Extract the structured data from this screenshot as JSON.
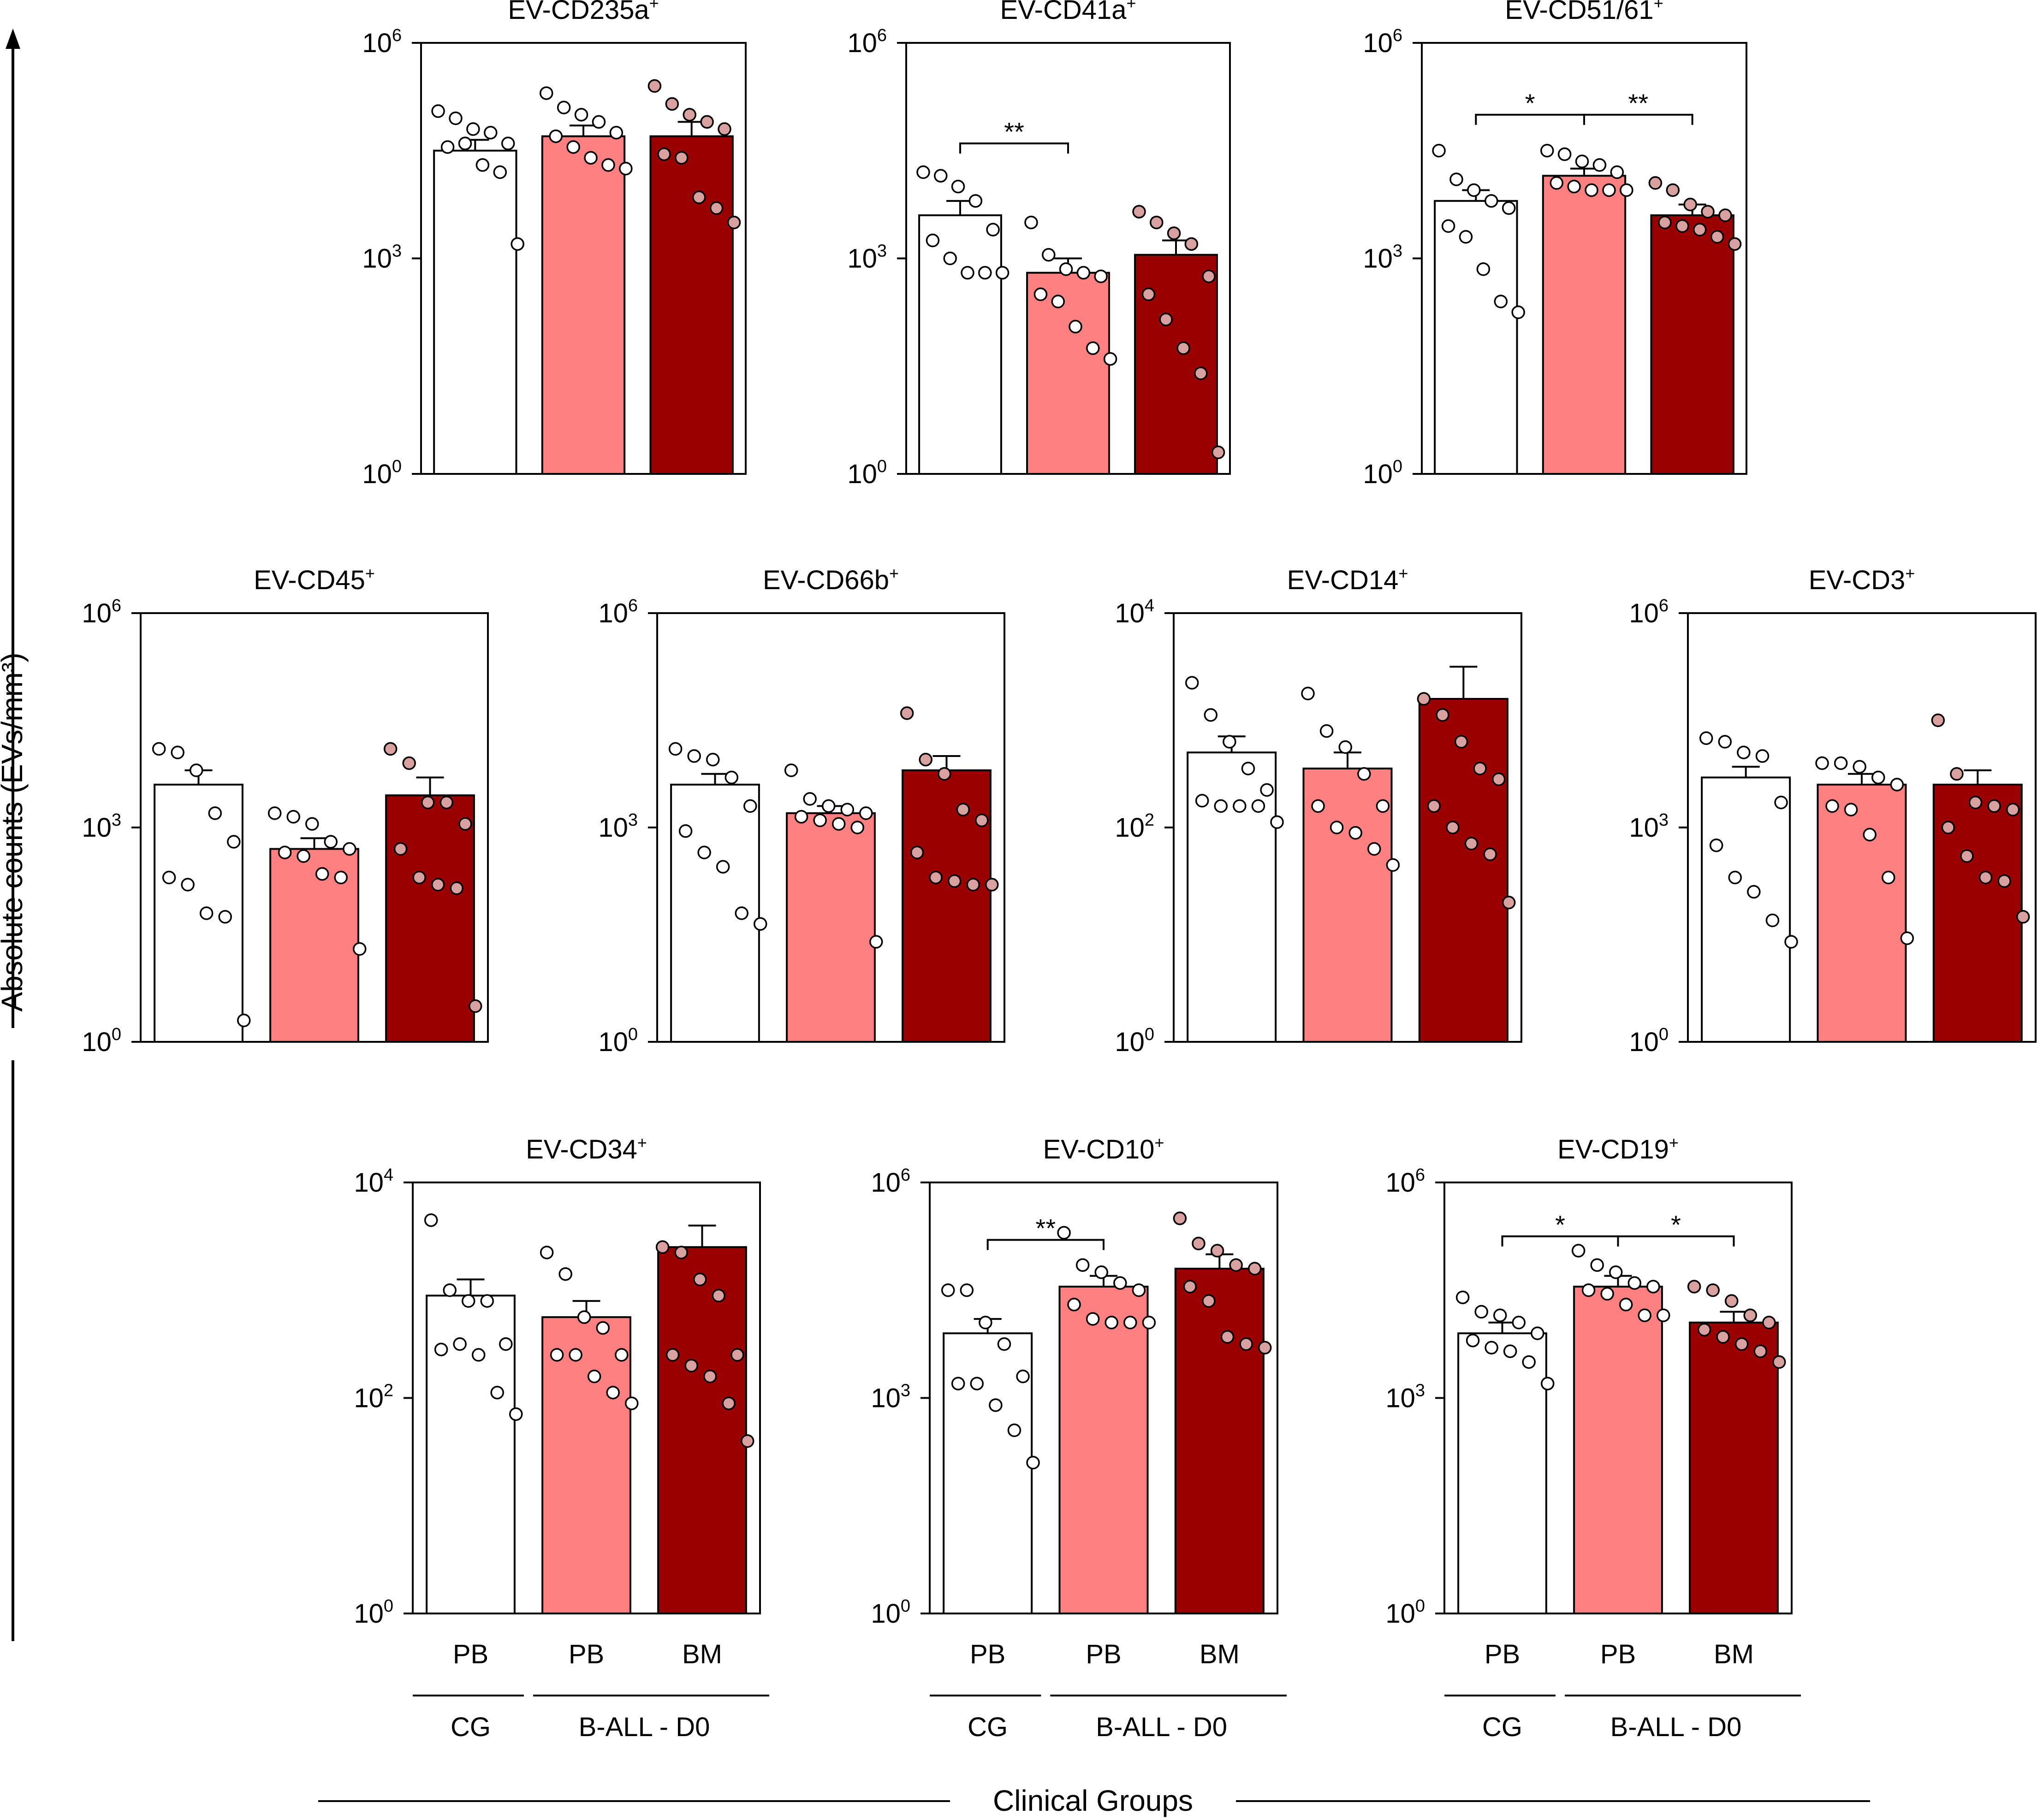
{
  "figure": {
    "y_axis_label": "Absolute counts (EVs/mm³)",
    "x_axis_label": "Clinical Groups",
    "group_labels": [
      "PB",
      "PB",
      "BM"
    ],
    "bracket_labels": [
      "CG",
      "B-ALL - D0"
    ]
  },
  "colors": {
    "cg_pb": "#ffffff",
    "ball_pb": "#ff8080",
    "ball_bm": "#9b0000",
    "dot_light": "#ffffff",
    "dot_pink": "#d9a0a0",
    "axis": "#000000"
  },
  "chart_data": [
    {
      "type": "bar",
      "title_main": "EV-CD235a",
      "title_sup": "+",
      "yscale": "log",
      "ylim_exp": [
        0,
        6
      ],
      "ytick_labels": [
        {
          "exp": 0,
          "base": "10",
          "sup": "0"
        },
        {
          "exp": 3,
          "base": "10",
          "sup": "3"
        },
        {
          "exp": 6,
          "base": "10",
          "sup": "6"
        }
      ],
      "categories": [
        "PB",
        "PB",
        "BM"
      ],
      "series": [
        {
          "name": "CG PB",
          "mean_exp": 4.5,
          "sem_exp": 4.65,
          "points_exp": [
            5.05,
            4.95,
            4.8,
            4.75,
            4.6,
            4.55,
            4.6,
            4.3,
            4.2,
            3.2
          ]
        },
        {
          "name": "B-ALL PB",
          "mean_exp": 4.7,
          "sem_exp": 4.85,
          "points_exp": [
            5.3,
            5.1,
            5.0,
            4.9,
            4.75,
            4.7,
            4.55,
            4.4,
            4.3,
            4.25
          ]
        },
        {
          "name": "B-ALL BM",
          "mean_exp": 4.7,
          "sem_exp": 4.9,
          "points_exp": [
            5.4,
            5.15,
            5.0,
            4.9,
            4.8,
            4.45,
            4.4,
            3.85,
            3.7,
            3.5
          ]
        }
      ],
      "significance": [],
      "show_x_labels": false
    },
    {
      "type": "bar",
      "title_main": "EV-CD41a",
      "title_sup": "+",
      "yscale": "log",
      "ylim_exp": [
        0,
        6
      ],
      "ytick_labels": [
        {
          "exp": 0,
          "base": "10",
          "sup": "0"
        },
        {
          "exp": 3,
          "base": "10",
          "sup": "3"
        },
        {
          "exp": 6,
          "base": "10",
          "sup": "6"
        }
      ],
      "categories": [
        "PB",
        "PB",
        "BM"
      ],
      "series": [
        {
          "name": "CG PB",
          "mean_exp": 3.6,
          "sem_exp": 3.8,
          "points_exp": [
            4.2,
            4.15,
            4.0,
            3.8,
            3.4,
            3.25,
            3.0,
            2.8,
            2.8,
            2.8
          ]
        },
        {
          "name": "B-ALL PB",
          "mean_exp": 2.8,
          "sem_exp": 3.0,
          "points_exp": [
            3.5,
            3.05,
            2.85,
            2.8,
            2.75,
            2.5,
            2.4,
            2.05,
            1.75,
            1.6
          ]
        },
        {
          "name": "B-ALL BM",
          "mean_exp": 3.05,
          "sem_exp": 3.25,
          "points_exp": [
            3.65,
            3.5,
            3.35,
            3.2,
            2.75,
            2.5,
            2.15,
            1.75,
            1.4,
            0.3
          ]
        }
      ],
      "significance": [
        {
          "from": 0,
          "to": 1,
          "label": "**",
          "level_exp": 4.6
        }
      ],
      "show_x_labels": false
    },
    {
      "type": "bar",
      "title_main": "EV-CD51/61",
      "title_sup": "+",
      "yscale": "log",
      "ylim_exp": [
        0,
        6
      ],
      "ytick_labels": [
        {
          "exp": 0,
          "base": "10",
          "sup": "0"
        },
        {
          "exp": 3,
          "base": "10",
          "sup": "3"
        },
        {
          "exp": 6,
          "base": "10",
          "sup": "6"
        }
      ],
      "categories": [
        "PB",
        "PB",
        "BM"
      ],
      "series": [
        {
          "name": "CG PB",
          "mean_exp": 3.8,
          "sem_exp": 3.95,
          "points_exp": [
            4.5,
            4.1,
            3.95,
            3.8,
            3.7,
            3.45,
            3.3,
            2.85,
            2.4,
            2.25
          ]
        },
        {
          "name": "B-ALL PB",
          "mean_exp": 4.15,
          "sem_exp": 4.25,
          "points_exp": [
            4.5,
            4.45,
            4.35,
            4.3,
            4.2,
            4.05,
            4.0,
            3.95,
            3.95,
            3.95
          ]
        },
        {
          "name": "B-ALL BM",
          "mean_exp": 3.6,
          "sem_exp": 3.75,
          "points_exp": [
            4.05,
            3.95,
            3.75,
            3.65,
            3.6,
            3.5,
            3.45,
            3.4,
            3.3,
            3.2
          ]
        }
      ],
      "significance": [
        {
          "from": 0,
          "to": 1,
          "label": "*",
          "level_exp": 5.0
        },
        {
          "from": 1,
          "to": 2,
          "label": "**",
          "level_exp": 5.0
        }
      ],
      "show_x_labels": false
    },
    {
      "type": "bar",
      "title_main": "EV-CD45",
      "title_sup": "+",
      "yscale": "log",
      "ylim_exp": [
        0,
        6
      ],
      "ytick_labels": [
        {
          "exp": 0,
          "base": "10",
          "sup": "0"
        },
        {
          "exp": 3,
          "base": "10",
          "sup": "3"
        },
        {
          "exp": 6,
          "base": "10",
          "sup": "6"
        }
      ],
      "categories": [
        "PB",
        "PB",
        "BM"
      ],
      "series": [
        {
          "name": "CG PB",
          "mean_exp": 3.6,
          "sem_exp": 3.8,
          "points_exp": [
            4.1,
            4.05,
            3.8,
            3.2,
            2.8,
            2.3,
            2.2,
            1.8,
            1.75,
            0.3
          ]
        },
        {
          "name": "B-ALL PB",
          "mean_exp": 2.7,
          "sem_exp": 2.85,
          "points_exp": [
            3.2,
            3.15,
            3.05,
            2.8,
            2.7,
            2.65,
            2.6,
            2.35,
            2.3,
            1.3
          ]
        },
        {
          "name": "B-ALL BM",
          "mean_exp": 3.45,
          "sem_exp": 3.7,
          "points_exp": [
            4.1,
            3.9,
            3.35,
            3.35,
            3.05,
            2.7,
            2.3,
            2.2,
            2.15,
            0.5
          ]
        }
      ],
      "significance": [],
      "show_x_labels": false
    },
    {
      "type": "bar",
      "title_main": "EV-CD66b",
      "title_sup": "+",
      "yscale": "log",
      "ylim_exp": [
        0,
        6
      ],
      "ytick_labels": [
        {
          "exp": 0,
          "base": "10",
          "sup": "0"
        },
        {
          "exp": 3,
          "base": "10",
          "sup": "3"
        },
        {
          "exp": 6,
          "base": "10",
          "sup": "6"
        }
      ],
      "categories": [
        "PB",
        "PB",
        "BM"
      ],
      "series": [
        {
          "name": "CG PB",
          "mean_exp": 3.6,
          "sem_exp": 3.75,
          "points_exp": [
            4.1,
            4.0,
            3.95,
            3.7,
            3.3,
            2.95,
            2.65,
            2.45,
            1.8,
            1.65
          ]
        },
        {
          "name": "B-ALL PB",
          "mean_exp": 3.2,
          "sem_exp": 3.3,
          "points_exp": [
            3.8,
            3.4,
            3.3,
            3.25,
            3.2,
            3.15,
            3.1,
            3.05,
            3.0,
            1.4
          ]
        },
        {
          "name": "B-ALL BM",
          "mean_exp": 3.8,
          "sem_exp": 4.0,
          "points_exp": [
            4.6,
            3.95,
            3.75,
            3.25,
            3.1,
            2.65,
            2.3,
            2.25,
            2.2,
            2.2
          ]
        }
      ],
      "significance": [],
      "show_x_labels": false
    },
    {
      "type": "bar",
      "title_main": "EV-CD14",
      "title_sup": "+",
      "yscale": "log",
      "ylim_exp": [
        0,
        4
      ],
      "ytick_labels": [
        {
          "exp": 0,
          "base": "10",
          "sup": "0"
        },
        {
          "exp": 2,
          "base": "10",
          "sup": "2"
        },
        {
          "exp": 4,
          "base": "10",
          "sup": "4"
        }
      ],
      "categories": [
        "PB",
        "PB",
        "BM"
      ],
      "series": [
        {
          "name": "CG PB",
          "mean_exp": 2.7,
          "sem_exp": 2.85,
          "points_exp": [
            3.35,
            3.05,
            2.8,
            2.55,
            2.35,
            2.25,
            2.2,
            2.2,
            2.2,
            2.05
          ]
        },
        {
          "name": "B-ALL PB",
          "mean_exp": 2.55,
          "sem_exp": 2.7,
          "points_exp": [
            3.25,
            2.9,
            2.75,
            2.5,
            2.2,
            2.2,
            2.0,
            1.95,
            1.8,
            1.65
          ]
        },
        {
          "name": "B-ALL BM",
          "mean_exp": 3.2,
          "sem_exp": 3.5,
          "points_exp": [
            3.2,
            3.05,
            2.8,
            2.55,
            2.45,
            2.2,
            2.0,
            1.85,
            1.75,
            1.3
          ]
        }
      ],
      "significance": [],
      "show_x_labels": false
    },
    {
      "type": "bar",
      "title_main": "EV-CD3",
      "title_sup": "+",
      "yscale": "log",
      "ylim_exp": [
        0,
        6
      ],
      "ytick_labels": [
        {
          "exp": 0,
          "base": "10",
          "sup": "0"
        },
        {
          "exp": 3,
          "base": "10",
          "sup": "3"
        },
        {
          "exp": 6,
          "base": "10",
          "sup": "6"
        }
      ],
      "categories": [
        "PB",
        "PB",
        "BM"
      ],
      "series": [
        {
          "name": "CG PB",
          "mean_exp": 3.7,
          "sem_exp": 3.85,
          "points_exp": [
            4.25,
            4.2,
            4.05,
            4.0,
            3.35,
            2.75,
            2.3,
            2.1,
            1.7,
            1.4
          ]
        },
        {
          "name": "B-ALL PB",
          "mean_exp": 3.6,
          "sem_exp": 3.75,
          "points_exp": [
            3.9,
            3.9,
            3.85,
            3.7,
            3.6,
            3.3,
            3.25,
            2.9,
            2.3,
            1.45
          ]
        },
        {
          "name": "B-ALL BM",
          "mean_exp": 3.6,
          "sem_exp": 3.8,
          "points_exp": [
            4.5,
            3.75,
            3.35,
            3.3,
            3.25,
            3.0,
            2.6,
            2.3,
            2.25,
            1.75
          ]
        }
      ],
      "significance": [],
      "show_x_labels": false
    },
    {
      "type": "bar",
      "title_main": "EV-CD34",
      "title_sup": "+",
      "yscale": "log",
      "ylim_exp": [
        0,
        4
      ],
      "ytick_labels": [
        {
          "exp": 0,
          "base": "10",
          "sup": "0"
        },
        {
          "exp": 2,
          "base": "10",
          "sup": "2"
        },
        {
          "exp": 4,
          "base": "10",
          "sup": "4"
        }
      ],
      "categories": [
        "PB",
        "PB",
        "BM"
      ],
      "series": [
        {
          "name": "CG PB",
          "mean_exp": 2.95,
          "sem_exp": 3.1,
          "points_exp": [
            3.65,
            3.0,
            2.9,
            2.9,
            2.5,
            2.45,
            2.5,
            2.4,
            2.05,
            1.85
          ]
        },
        {
          "name": "B-ALL PB",
          "mean_exp": 2.75,
          "sem_exp": 2.9,
          "points_exp": [
            3.35,
            3.15,
            2.75,
            2.65,
            2.4,
            2.4,
            2.4,
            2.2,
            2.05,
            1.95
          ]
        },
        {
          "name": "B-ALL BM",
          "mean_exp": 3.4,
          "sem_exp": 3.6,
          "points_exp": [
            3.4,
            3.35,
            3.1,
            2.95,
            2.4,
            2.4,
            2.3,
            2.2,
            1.95,
            1.6
          ]
        }
      ],
      "significance": [],
      "show_x_labels": true
    },
    {
      "type": "bar",
      "title_main": "EV-CD10",
      "title_sup": "+",
      "yscale": "log",
      "ylim_exp": [
        0,
        6
      ],
      "ytick_labels": [
        {
          "exp": 0,
          "base": "10",
          "sup": "0"
        },
        {
          "exp": 3,
          "base": "10",
          "sup": "3"
        },
        {
          "exp": 6,
          "base": "10",
          "sup": "6"
        }
      ],
      "categories": [
        "PB",
        "PB",
        "BM"
      ],
      "series": [
        {
          "name": "CG PB",
          "mean_exp": 3.9,
          "sem_exp": 4.1,
          "points_exp": [
            4.5,
            4.5,
            4.05,
            3.75,
            3.3,
            3.2,
            3.2,
            2.9,
            2.55,
            2.1
          ]
        },
        {
          "name": "B-ALL PB",
          "mean_exp": 4.55,
          "sem_exp": 4.7,
          "points_exp": [
            5.3,
            4.85,
            4.75,
            4.6,
            4.5,
            4.3,
            4.1,
            4.05,
            4.05,
            4.05
          ]
        },
        {
          "name": "B-ALL BM",
          "mean_exp": 4.8,
          "sem_exp": 5.0,
          "points_exp": [
            5.5,
            5.15,
            5.05,
            4.85,
            4.8,
            4.55,
            4.35,
            3.85,
            3.75,
            3.7
          ]
        }
      ],
      "significance": [
        {
          "from": 0,
          "to": 1,
          "label": "**",
          "level_exp": 5.2
        }
      ],
      "show_x_labels": true
    },
    {
      "type": "bar",
      "title_main": "EV-CD19",
      "title_sup": "+",
      "yscale": "log",
      "ylim_exp": [
        0,
        6
      ],
      "ytick_labels": [
        {
          "exp": 0,
          "base": "10",
          "sup": "0"
        },
        {
          "exp": 3,
          "base": "10",
          "sup": "3"
        },
        {
          "exp": 6,
          "base": "10",
          "sup": "6"
        }
      ],
      "categories": [
        "PB",
        "PB",
        "BM"
      ],
      "series": [
        {
          "name": "CG PB",
          "mean_exp": 3.9,
          "sem_exp": 4.05,
          "points_exp": [
            4.4,
            4.2,
            4.15,
            4.05,
            3.9,
            3.8,
            3.7,
            3.65,
            3.5,
            3.2
          ]
        },
        {
          "name": "B-ALL PB",
          "mean_exp": 4.55,
          "sem_exp": 4.7,
          "points_exp": [
            5.05,
            4.85,
            4.75,
            4.6,
            4.55,
            4.5,
            4.45,
            4.3,
            4.15,
            4.15
          ]
        },
        {
          "name": "B-ALL BM",
          "mean_exp": 4.05,
          "sem_exp": 4.2,
          "points_exp": [
            4.55,
            4.5,
            4.35,
            4.15,
            4.05,
            3.95,
            3.85,
            3.75,
            3.65,
            3.5
          ]
        }
      ],
      "significance": [
        {
          "from": 0,
          "to": 1,
          "label": "*",
          "level_exp": 5.25
        },
        {
          "from": 1,
          "to": 2,
          "label": "*",
          "level_exp": 5.25
        }
      ],
      "show_x_labels": true
    }
  ]
}
